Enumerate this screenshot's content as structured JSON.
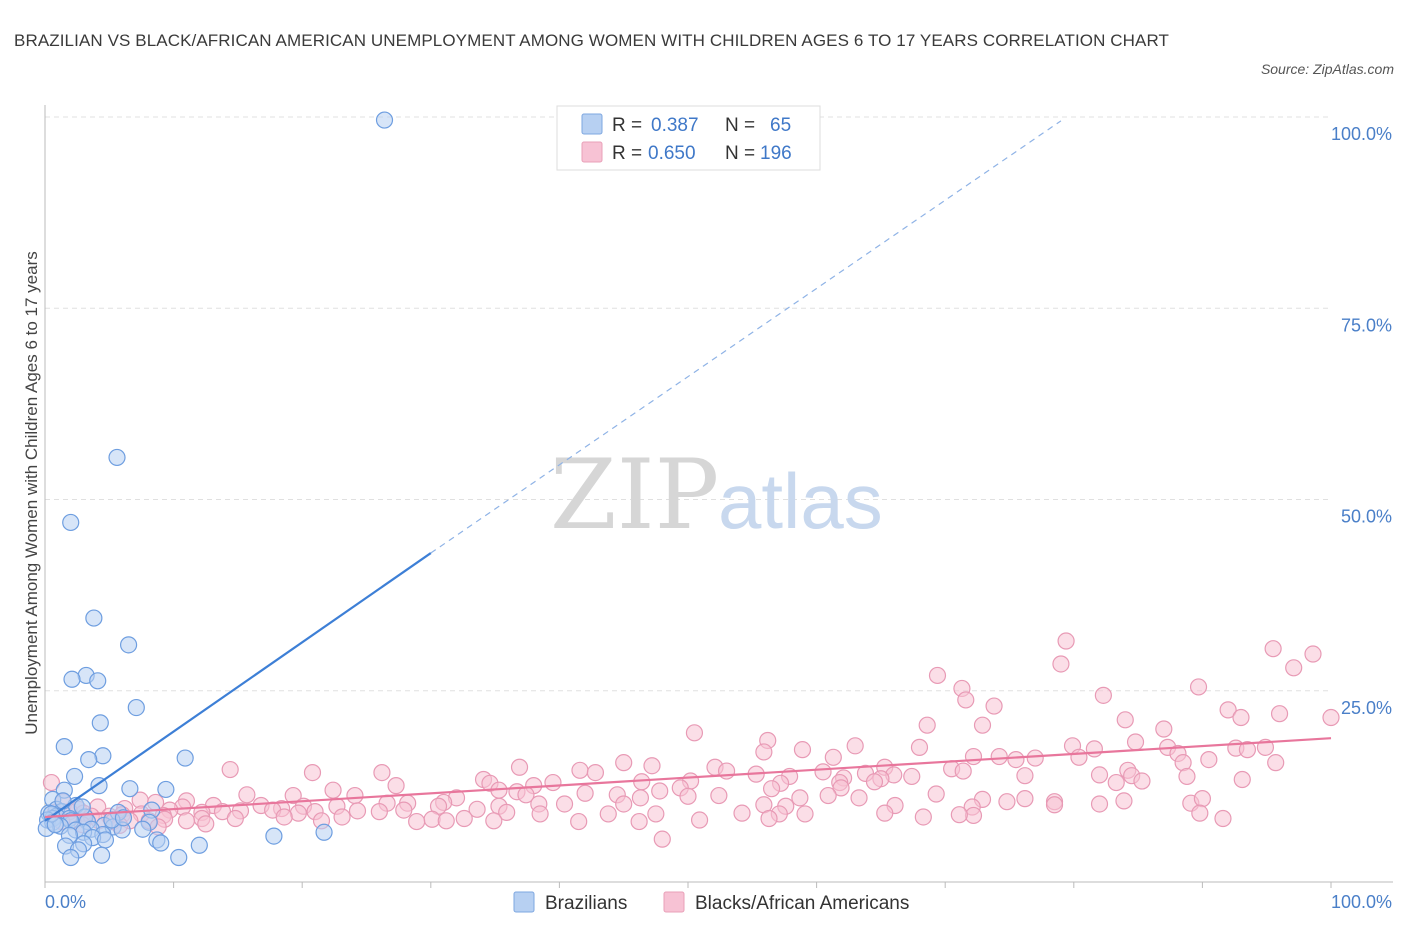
{
  "title": "BRAZILIAN VS BLACK/AFRICAN AMERICAN UNEMPLOYMENT AMONG WOMEN WITH CHILDREN AGES 6 TO 17 YEARS CORRELATION CHART",
  "source": "Source: ZipAtlas.com",
  "watermark": {
    "zip": "ZIP",
    "atlas": "atlas"
  },
  "colors": {
    "blue": "#3d7fd6",
    "blue_fill": "#b7d0f2",
    "pink": "#e8769c",
    "pink_fill": "#f7c2d4"
  },
  "legend": {
    "rows": [
      {
        "r_label": "R = ",
        "r_value": "0.387",
        "n_label": "N = ",
        "n_value": "65"
      },
      {
        "r_label": "R = ",
        "r_value": "0.650",
        "n_label": "N = ",
        "n_value": "196"
      }
    ]
  },
  "chart_data": {
    "type": "scatter",
    "xlabel": "",
    "ylabel": "Unemployment Among Women with Children Ages 6 to 17 years",
    "xlim": [
      0,
      100
    ],
    "ylim": [
      0,
      100
    ],
    "x_tick_labels": [
      "0.0%",
      "100.0%"
    ],
    "y_ticks": [
      {
        "value": 25,
        "label": "25.0%"
      },
      {
        "value": 50,
        "label": "50.0%"
      },
      {
        "value": 75,
        "label": "75.0%"
      },
      {
        "value": 100,
        "label": "100.0%"
      }
    ],
    "grid": true,
    "legend_position": "top-center",
    "series": [
      {
        "name": "Brazilians",
        "color": "#3d7fd6",
        "trend": {
          "x0": 0,
          "y0": 8,
          "x1": 30,
          "y1": 43,
          "dash_x1": 79,
          "dash_y1": 99.5
        },
        "points": [
          [
            26.4,
            99.6
          ],
          [
            5.6,
            55.5
          ],
          [
            2.0,
            47.0
          ],
          [
            3.8,
            34.5
          ],
          [
            6.5,
            31.0
          ],
          [
            3.2,
            27.0
          ],
          [
            2.1,
            26.5
          ],
          [
            4.1,
            26.3
          ],
          [
            7.1,
            22.8
          ],
          [
            4.3,
            20.8
          ],
          [
            1.5,
            17.7
          ],
          [
            4.5,
            16.5
          ],
          [
            3.4,
            16.0
          ],
          [
            10.9,
            16.2
          ],
          [
            2.3,
            13.8
          ],
          [
            4.2,
            12.6
          ],
          [
            6.6,
            12.2
          ],
          [
            9.4,
            12.1
          ],
          [
            1.5,
            12.0
          ],
          [
            0.6,
            10.8
          ],
          [
            2.4,
            10.0
          ],
          [
            0.9,
            9.5
          ],
          [
            1.3,
            9.2
          ],
          [
            5.7,
            9.1
          ],
          [
            8.3,
            9.4
          ],
          [
            0.3,
            9.0
          ],
          [
            0.9,
            8.6
          ],
          [
            3.1,
            8.5
          ],
          [
            0.6,
            8.3
          ],
          [
            1.9,
            8.3
          ],
          [
            0.2,
            8.1
          ],
          [
            2.0,
            8.0
          ],
          [
            0.6,
            7.8
          ],
          [
            3.3,
            7.9
          ],
          [
            8.1,
            7.8
          ],
          [
            4.6,
            7.4
          ],
          [
            1.2,
            7.3
          ],
          [
            5.3,
            7.2
          ],
          [
            0.1,
            7.0
          ],
          [
            3.6,
            6.9
          ],
          [
            7.6,
            6.9
          ],
          [
            2.4,
            6.8
          ],
          [
            6.0,
            6.8
          ],
          [
            3.0,
            6.5
          ],
          [
            4.5,
            6.2
          ],
          [
            1.9,
            6.1
          ],
          [
            3.7,
            5.8
          ],
          [
            4.7,
            5.5
          ],
          [
            8.7,
            5.5
          ],
          [
            3.0,
            5.0
          ],
          [
            9.0,
            5.1
          ],
          [
            1.6,
            4.7
          ],
          [
            12.0,
            4.8
          ],
          [
            2.6,
            4.2
          ],
          [
            2.0,
            3.2
          ],
          [
            4.4,
            3.5
          ],
          [
            10.4,
            3.2
          ],
          [
            17.8,
            6.0
          ],
          [
            21.7,
            6.5
          ],
          [
            0.5,
            8.9
          ],
          [
            1.4,
            10.6
          ],
          [
            5.2,
            8.1
          ],
          [
            6.1,
            8.4
          ],
          [
            2.9,
            9.8
          ],
          [
            0.8,
            7.5
          ]
        ]
      },
      {
        "name": "Blacks/African Americans",
        "color": "#e8769c",
        "trend": {
          "x0": 0,
          "y0": 8.5,
          "x1": 100,
          "y1": 18.8
        },
        "points": [
          [
            79.4,
            31.5
          ],
          [
            95.5,
            30.5
          ],
          [
            98.6,
            29.8
          ],
          [
            79.0,
            28.5
          ],
          [
            97.1,
            28.0
          ],
          [
            69.4,
            27.0
          ],
          [
            71.3,
            25.3
          ],
          [
            89.7,
            25.5
          ],
          [
            82.3,
            24.4
          ],
          [
            71.6,
            23.8
          ],
          [
            73.8,
            23.0
          ],
          [
            92.0,
            22.5
          ],
          [
            96.0,
            22.0
          ],
          [
            93.0,
            21.5
          ],
          [
            100.0,
            21.5
          ],
          [
            84.0,
            21.2
          ],
          [
            68.6,
            20.5
          ],
          [
            72.9,
            20.5
          ],
          [
            87.0,
            20.0
          ],
          [
            50.5,
            19.5
          ],
          [
            56.2,
            18.5
          ],
          [
            84.8,
            18.3
          ],
          [
            63.0,
            17.8
          ],
          [
            68.0,
            17.6
          ],
          [
            79.9,
            17.8
          ],
          [
            87.3,
            17.6
          ],
          [
            92.6,
            17.5
          ],
          [
            94.9,
            17.6
          ],
          [
            58.9,
            17.3
          ],
          [
            81.6,
            17.4
          ],
          [
            93.5,
            17.3
          ],
          [
            55.9,
            17.0
          ],
          [
            88.1,
            16.8
          ],
          [
            61.3,
            16.3
          ],
          [
            74.2,
            16.4
          ],
          [
            77.0,
            16.2
          ],
          [
            72.2,
            16.4
          ],
          [
            80.4,
            16.3
          ],
          [
            75.5,
            16.0
          ],
          [
            88.5,
            15.6
          ],
          [
            45.0,
            15.6
          ],
          [
            90.5,
            16.0
          ],
          [
            95.7,
            15.6
          ],
          [
            47.2,
            15.2
          ],
          [
            52.1,
            15.0
          ],
          [
            65.3,
            15.0
          ],
          [
            70.5,
            14.8
          ],
          [
            36.9,
            15.0
          ],
          [
            84.2,
            14.6
          ],
          [
            41.6,
            14.6
          ],
          [
            53.0,
            14.5
          ],
          [
            60.5,
            14.4
          ],
          [
            55.3,
            14.1
          ],
          [
            63.8,
            14.2
          ],
          [
            66.0,
            14.0
          ],
          [
            42.8,
            14.3
          ],
          [
            67.4,
            13.8
          ],
          [
            57.9,
            13.8
          ],
          [
            62.1,
            13.6
          ],
          [
            65.0,
            13.5
          ],
          [
            64.5,
            13.1
          ],
          [
            71.4,
            14.5
          ],
          [
            76.2,
            13.9
          ],
          [
            88.8,
            13.8
          ],
          [
            93.1,
            13.4
          ],
          [
            84.5,
            13.9
          ],
          [
            85.3,
            13.2
          ],
          [
            83.3,
            13.0
          ],
          [
            82.0,
            14.0
          ],
          [
            39.5,
            13.0
          ],
          [
            46.4,
            13.1
          ],
          [
            50.2,
            13.2
          ],
          [
            57.2,
            12.9
          ],
          [
            61.8,
            13.0
          ],
          [
            26.2,
            14.3
          ],
          [
            20.8,
            14.3
          ],
          [
            14.4,
            14.7
          ],
          [
            34.1,
            13.4
          ],
          [
            34.6,
            12.9
          ],
          [
            38.0,
            12.6
          ],
          [
            35.3,
            12.0
          ],
          [
            27.3,
            12.6
          ],
          [
            49.4,
            12.3
          ],
          [
            56.5,
            12.2
          ],
          [
            61.9,
            12.3
          ],
          [
            47.8,
            11.9
          ],
          [
            36.7,
            11.8
          ],
          [
            42.0,
            11.6
          ],
          [
            37.4,
            11.4
          ],
          [
            44.5,
            11.4
          ],
          [
            32.0,
            11.0
          ],
          [
            46.3,
            11.0
          ],
          [
            50.0,
            11.2
          ],
          [
            52.4,
            11.3
          ],
          [
            60.9,
            11.3
          ],
          [
            58.7,
            11.0
          ],
          [
            69.3,
            11.5
          ],
          [
            72.9,
            10.8
          ],
          [
            76.2,
            10.9
          ],
          [
            78.5,
            10.5
          ],
          [
            83.9,
            10.6
          ],
          [
            89.1,
            10.3
          ],
          [
            90.0,
            10.9
          ],
          [
            82.0,
            10.2
          ],
          [
            74.8,
            10.5
          ],
          [
            63.3,
            11.0
          ],
          [
            22.4,
            12.0
          ],
          [
            24.1,
            11.3
          ],
          [
            19.3,
            11.3
          ],
          [
            15.7,
            11.4
          ],
          [
            11.0,
            10.6
          ],
          [
            7.4,
            10.7
          ],
          [
            8.6,
            10.4
          ],
          [
            31.0,
            10.4
          ],
          [
            28.2,
            10.3
          ],
          [
            26.6,
            10.3
          ],
          [
            30.6,
            9.9
          ],
          [
            35.3,
            9.9
          ],
          [
            38.4,
            10.2
          ],
          [
            40.4,
            10.2
          ],
          [
            45.0,
            10.2
          ],
          [
            55.9,
            10.1
          ],
          [
            57.6,
            9.9
          ],
          [
            66.1,
            10.0
          ],
          [
            72.1,
            9.8
          ],
          [
            78.5,
            10.1
          ],
          [
            89.8,
            9.0
          ],
          [
            20.1,
            9.9
          ],
          [
            22.7,
            9.9
          ],
          [
            18.4,
            9.6
          ],
          [
            16.8,
            10.0
          ],
          [
            13.1,
            10.0
          ],
          [
            10.7,
            9.8
          ],
          [
            9.7,
            9.4
          ],
          [
            6.2,
            9.6
          ],
          [
            4.1,
            9.8
          ],
          [
            2.6,
            9.5
          ],
          [
            0.5,
            13.0
          ],
          [
            1.4,
            10.5
          ],
          [
            0.8,
            9.1
          ],
          [
            1.9,
            9.2
          ],
          [
            3.0,
            9.0
          ],
          [
            3.6,
            8.6
          ],
          [
            5.0,
            8.6
          ],
          [
            6.0,
            8.8
          ],
          [
            7.5,
            8.9
          ],
          [
            9.2,
            8.7
          ],
          [
            12.2,
            9.1
          ],
          [
            13.8,
            9.2
          ],
          [
            15.2,
            9.3
          ],
          [
            17.7,
            9.4
          ],
          [
            19.7,
            9.0
          ],
          [
            21.0,
            9.2
          ],
          [
            24.3,
            9.3
          ],
          [
            26.0,
            9.2
          ],
          [
            27.9,
            9.4
          ],
          [
            33.6,
            9.5
          ],
          [
            35.9,
            9.1
          ],
          [
            38.5,
            8.9
          ],
          [
            43.8,
            8.9
          ],
          [
            47.5,
            8.9
          ],
          [
            54.2,
            9.0
          ],
          [
            57.1,
            8.9
          ],
          [
            59.1,
            8.9
          ],
          [
            65.3,
            9.0
          ],
          [
            72.2,
            8.7
          ],
          [
            32.6,
            8.3
          ],
          [
            30.1,
            8.2
          ],
          [
            23.1,
            8.5
          ],
          [
            21.5,
            8.0
          ],
          [
            18.6,
            8.5
          ],
          [
            14.8,
            8.3
          ],
          [
            12.2,
            8.3
          ],
          [
            11.0,
            8.0
          ],
          [
            9.3,
            8.2
          ],
          [
            8.1,
            8.0
          ],
          [
            6.6,
            8.0
          ],
          [
            5.3,
            7.9
          ],
          [
            4.2,
            8.0
          ],
          [
            2.2,
            8.0
          ],
          [
            1.3,
            7.9
          ],
          [
            2.9,
            7.5
          ],
          [
            5.8,
            7.4
          ],
          [
            8.8,
            7.2
          ],
          [
            12.5,
            7.6
          ],
          [
            28.9,
            7.9
          ],
          [
            31.2,
            8.0
          ],
          [
            34.9,
            8.0
          ],
          [
            41.5,
            7.9
          ],
          [
            46.2,
            7.9
          ],
          [
            50.9,
            8.1
          ],
          [
            56.3,
            8.3
          ],
          [
            71.1,
            8.8
          ],
          [
            91.6,
            8.3
          ],
          [
            48.0,
            5.6
          ],
          [
            68.3,
            8.5
          ]
        ]
      }
    ]
  },
  "bottom_legend": [
    {
      "label": "Brazilians"
    },
    {
      "label": "Blacks/African Americans"
    }
  ]
}
